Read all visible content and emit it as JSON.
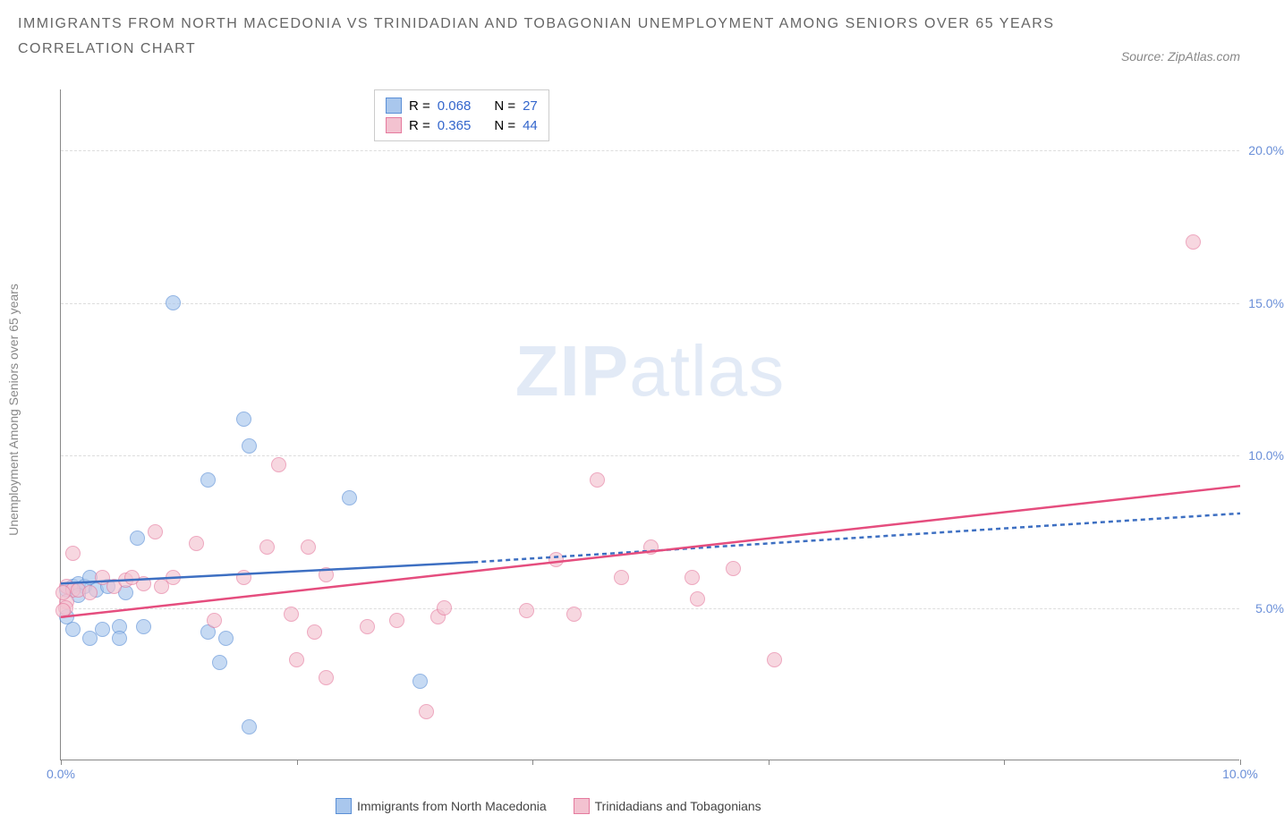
{
  "title_line1": "IMMIGRANTS FROM NORTH MACEDONIA VS TRINIDADIAN AND TOBAGONIAN UNEMPLOYMENT AMONG SENIORS OVER 65 YEARS",
  "title_line2": "CORRELATION CHART",
  "source": "Source: ZipAtlas.com",
  "watermark_part1": "ZIP",
  "watermark_part2": "atlas",
  "y_axis_label": "Unemployment Among Seniors over 65 years",
  "chart": {
    "type": "scatter",
    "background_color": "#ffffff",
    "grid_color": "#dddddd",
    "border_color": "#888888",
    "title_color": "#666666",
    "tick_label_color": "#6a8fd8",
    "title_fontsize": 16,
    "label_fontsize": 14,
    "marker_radius": 8.5,
    "marker_opacity": 0.65,
    "xlim": [
      0,
      10
    ],
    "ylim": [
      0,
      22
    ],
    "x_ticks": [
      0,
      2,
      4,
      6,
      8,
      10
    ],
    "x_tick_labels": [
      "0.0%",
      "",
      "",
      "",
      "",
      "10.0%"
    ],
    "y_ticks": [
      5,
      10,
      15,
      20
    ],
    "y_tick_labels": [
      "5.0%",
      "10.0%",
      "15.0%",
      "20.0%"
    ],
    "series": [
      {
        "name": "Immigrants from North Macedonia",
        "fill_color": "#a9c7ed",
        "stroke_color": "#5a8fd6",
        "line_color": "#3d6fc2",
        "R": 0.068,
        "N": 27,
        "trend_start": [
          0.0,
          5.8
        ],
        "trend_mid": [
          3.5,
          6.5
        ],
        "trend_end": [
          10.0,
          8.1
        ],
        "trend_solid_until": 3.5,
        "points": [
          [
            0.05,
            5.6
          ],
          [
            0.1,
            5.7
          ],
          [
            0.15,
            5.8
          ],
          [
            0.2,
            5.7
          ],
          [
            0.25,
            6.0
          ],
          [
            0.3,
            5.6
          ],
          [
            0.1,
            4.3
          ],
          [
            0.35,
            4.3
          ],
          [
            0.5,
            4.4
          ],
          [
            0.7,
            4.4
          ],
          [
            0.25,
            4.0
          ],
          [
            0.5,
            4.0
          ],
          [
            0.95,
            15.0
          ],
          [
            0.65,
            7.3
          ],
          [
            1.55,
            11.2
          ],
          [
            1.25,
            9.2
          ],
          [
            1.6,
            10.3
          ],
          [
            1.25,
            4.2
          ],
          [
            1.4,
            4.0
          ],
          [
            1.35,
            3.2
          ],
          [
            1.6,
            1.1
          ],
          [
            2.45,
            8.6
          ],
          [
            3.05,
            2.6
          ],
          [
            0.05,
            4.7
          ],
          [
            0.15,
            5.4
          ],
          [
            0.4,
            5.7
          ],
          [
            0.55,
            5.5
          ]
        ]
      },
      {
        "name": "Trinidadians and Tobagonians",
        "fill_color": "#f3c2d0",
        "stroke_color": "#e57a9e",
        "line_color": "#e54d7e",
        "R": 0.365,
        "N": 44,
        "trend_start": [
          0.0,
          4.7
        ],
        "trend_mid": [
          5.0,
          6.8
        ],
        "trend_end": [
          10.0,
          9.0
        ],
        "trend_solid_until": 10.0,
        "points": [
          [
            0.05,
            5.7
          ],
          [
            0.1,
            5.6
          ],
          [
            0.15,
            5.6
          ],
          [
            0.05,
            5.2
          ],
          [
            0.04,
            5.0
          ],
          [
            0.02,
            4.9
          ],
          [
            0.1,
            6.8
          ],
          [
            0.25,
            5.5
          ],
          [
            0.35,
            6.0
          ],
          [
            0.45,
            5.7
          ],
          [
            0.55,
            5.9
          ],
          [
            0.7,
            5.8
          ],
          [
            0.8,
            7.5
          ],
          [
            0.85,
            5.7
          ],
          [
            0.95,
            6.0
          ],
          [
            1.15,
            7.1
          ],
          [
            1.3,
            4.6
          ],
          [
            1.75,
            7.0
          ],
          [
            1.85,
            9.7
          ],
          [
            1.95,
            4.8
          ],
          [
            2.0,
            3.3
          ],
          [
            2.1,
            7.0
          ],
          [
            2.15,
            4.2
          ],
          [
            2.25,
            2.7
          ],
          [
            2.25,
            6.1
          ],
          [
            2.6,
            4.4
          ],
          [
            2.85,
            4.6
          ],
          [
            3.1,
            1.6
          ],
          [
            3.2,
            4.7
          ],
          [
            3.25,
            5.0
          ],
          [
            3.95,
            4.9
          ],
          [
            4.2,
            6.6
          ],
          [
            4.35,
            4.8
          ],
          [
            4.55,
            9.2
          ],
          [
            4.75,
            6.0
          ],
          [
            5.0,
            7.0
          ],
          [
            5.35,
            6.0
          ],
          [
            5.7,
            6.3
          ],
          [
            5.4,
            5.3
          ],
          [
            6.05,
            3.3
          ],
          [
            9.6,
            17.0
          ],
          [
            0.6,
            6.0
          ],
          [
            1.55,
            6.0
          ],
          [
            0.02,
            5.5
          ]
        ]
      }
    ]
  },
  "legend_top": {
    "label_R": "R =",
    "label_N": "N ="
  }
}
